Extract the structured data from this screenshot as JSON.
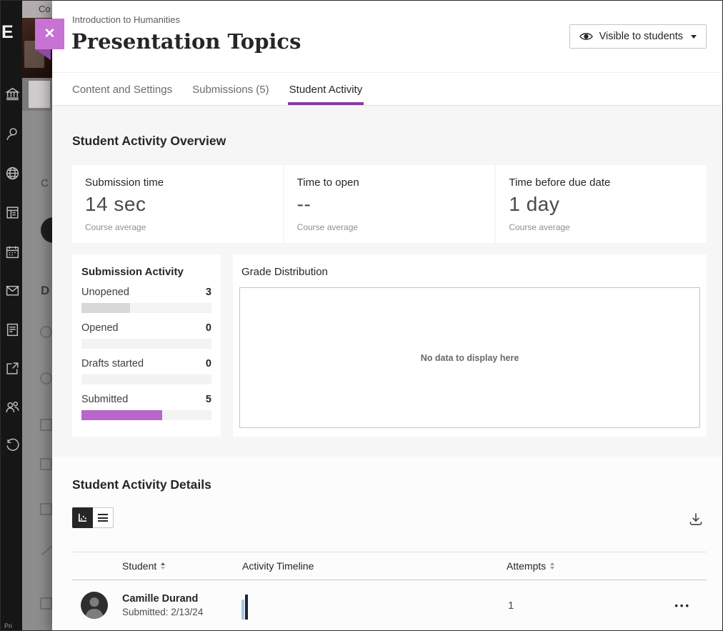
{
  "colors": {
    "accent_purple": "#8a3aa3",
    "close_button": "#c673d4",
    "submitted_bar": "#b766ca",
    "unopened_bar": "#d9d7d9",
    "timeline_light": "#a6c9dd",
    "timeline_dark": "#16263a"
  },
  "sidebar": {
    "logo": "E",
    "footer": "Pri"
  },
  "backdrop": {
    "fragment_top": "Co",
    "fragment_mid": "C",
    "fragment_heading": "D"
  },
  "header": {
    "breadcrumb": "Introduction to Humanities",
    "title": "Presentation Topics",
    "visibility_label": "Visible to students"
  },
  "tabs": {
    "content_settings": "Content and Settings",
    "submissions": "Submissions (5)",
    "student_activity": "Student Activity"
  },
  "overview": {
    "heading": "Student Activity Overview",
    "cards": [
      {
        "label": "Submission time",
        "value": "14 sec",
        "caption": "Course average"
      },
      {
        "label": "Time to open",
        "value": "--",
        "caption": "Course average"
      },
      {
        "label": "Time before due date",
        "value": "1 day",
        "caption": "Course average"
      }
    ]
  },
  "submission_activity": {
    "title": "Submission Activity",
    "items": [
      {
        "label": "Unopened",
        "count": "3",
        "pct": 37.5,
        "color": "#d9d7d9"
      },
      {
        "label": "Opened",
        "count": "0",
        "pct": 0,
        "color": "#b766ca"
      },
      {
        "label": "Drafts started",
        "count": "0",
        "pct": 0,
        "color": "#b766ca"
      },
      {
        "label": "Submitted",
        "count": "5",
        "pct": 62,
        "color": "#b766ca"
      }
    ]
  },
  "grade_distribution": {
    "title": "Grade Distribution",
    "empty_message": "No data to display here"
  },
  "details": {
    "heading": "Student Activity Details",
    "table": {
      "col_student": "Student",
      "col_timeline": "Activity Timeline",
      "col_attempts": "Attempts",
      "rows": [
        {
          "name": "Camille Durand",
          "status": "Submitted: 2/13/24",
          "attempts": "1",
          "menu": "•••",
          "timeline_bars": [
            {
              "color": "#a6c9dd",
              "h": 28
            },
            {
              "color": "#16263a",
              "h": 35
            }
          ]
        }
      ]
    }
  }
}
